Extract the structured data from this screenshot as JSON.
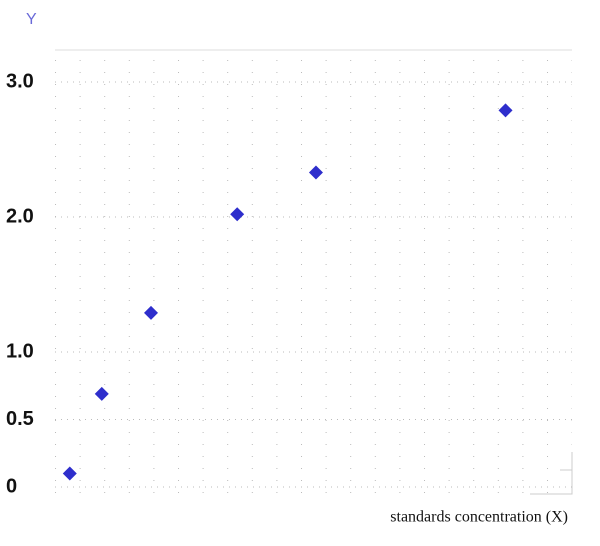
{
  "chart_data": {
    "type": "scatter",
    "y_label": "Y",
    "x_label": "standards concentration (X)",
    "x": [
      0.6,
      1.9,
      3.9,
      7.4,
      10.6,
      18.3
    ],
    "values": [
      0.1,
      0.69,
      1.29,
      2.02,
      2.33,
      2.79
    ],
    "color": "#2e2ecc",
    "xlim": [
      0,
      21
    ],
    "ylim": [
      0,
      3.2
    ],
    "yticks": [
      0,
      0.5,
      {
        "value": 1,
        "label": "1.0"
      },
      {
        "value": 2,
        "label": "2.0"
      },
      {
        "value": 3,
        "label": "3.0"
      }
    ],
    "grid": true
  }
}
